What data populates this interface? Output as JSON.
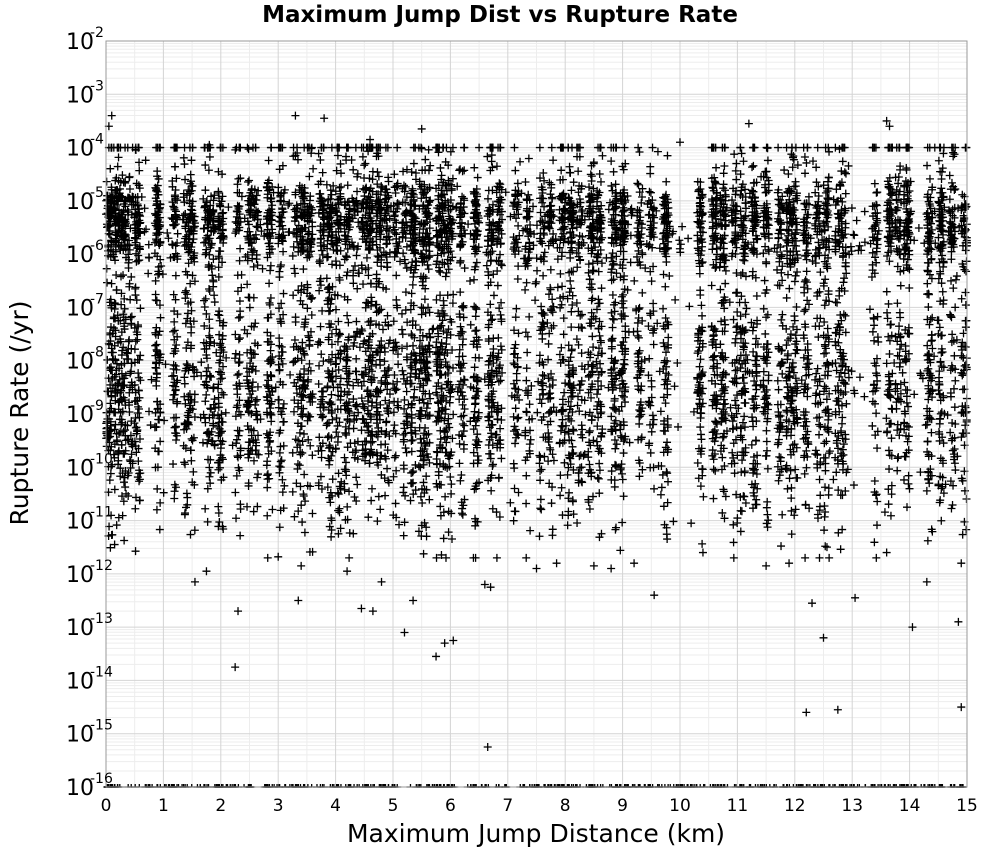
{
  "chart_data": {
    "type": "scatter",
    "title": "Maximum Jump Dist vs Rupture Rate",
    "xlabel": "Maximum Jump Distance (km)",
    "ylabel": "Rupture Rate (/yr)",
    "xlim": [
      0,
      15
    ],
    "ylim": [
      1e-16,
      0.01
    ],
    "y_scale": "log",
    "grid": true,
    "marker": "+",
    "marker_color": "#000000",
    "x_ticks": [
      "0",
      "1",
      "2",
      "3",
      "4",
      "5",
      "6",
      "7",
      "8",
      "9",
      "10",
      "11",
      "12",
      "13",
      "14",
      "15"
    ],
    "y_ticks": [
      {
        "base": "10",
        "exp": "-16"
      },
      {
        "base": "10",
        "exp": "-15"
      },
      {
        "base": "10",
        "exp": "-14"
      },
      {
        "base": "10",
        "exp": "-13"
      },
      {
        "base": "10",
        "exp": "-12"
      },
      {
        "base": "10",
        "exp": "-11"
      },
      {
        "base": "10",
        "exp": "-10"
      },
      {
        "base": "10",
        "exp": "-9"
      },
      {
        "base": "10",
        "exp": "-8"
      },
      {
        "base": "10",
        "exp": "-7"
      },
      {
        "base": "10",
        "exp": "-6"
      },
      {
        "base": "10",
        "exp": "-5"
      },
      {
        "base": "10",
        "exp": "-4"
      },
      {
        "base": "10",
        "exp": "-3"
      },
      {
        "base": "10",
        "exp": "-2"
      }
    ],
    "column_x": [
      0.05,
      0.12,
      0.2,
      0.3,
      0.42,
      0.55,
      0.9,
      1.2,
      1.4,
      1.5,
      1.75,
      1.85,
      2.0,
      2.3,
      2.5,
      2.6,
      2.85,
      3.05,
      3.3,
      3.42,
      3.55,
      3.75,
      3.9,
      4.05,
      4.2,
      4.35,
      4.5,
      4.6,
      4.75,
      4.9,
      5.05,
      5.2,
      5.35,
      5.5,
      5.6,
      5.8,
      5.9,
      6.0,
      6.2,
      6.45,
      6.7,
      6.85,
      7.15,
      7.35,
      7.6,
      7.75,
      7.95,
      8.1,
      8.25,
      8.45,
      8.6,
      8.85,
      9.0,
      9.3,
      9.5,
      9.75,
      10.35,
      10.6,
      10.75,
      10.95,
      11.1,
      11.3,
      11.5,
      11.75,
      11.9,
      12.0,
      12.2,
      12.4,
      12.55,
      12.75,
      12.85,
      13.4,
      13.65,
      13.8,
      13.95,
      14.35,
      14.55,
      14.75,
      14.95
    ],
    "points": [
      [
        0.1,
        -3.4
      ],
      [
        0.05,
        -3.6
      ],
      [
        3.3,
        -3.4
      ],
      [
        3.8,
        -3.45
      ],
      [
        5.5,
        -3.65
      ],
      [
        11.2,
        -3.55
      ],
      [
        13.6,
        -3.5
      ],
      [
        13.65,
        -3.6
      ],
      [
        4.6,
        -3.85
      ],
      [
        10.0,
        -3.9
      ],
      [
        1.8,
        -3.95
      ],
      [
        2.3,
        -12.7
      ],
      [
        2.25,
        -13.75
      ],
      [
        3.35,
        -12.5
      ],
      [
        4.45,
        -12.65
      ],
      [
        4.65,
        -12.7
      ],
      [
        5.2,
        -13.1
      ],
      [
        5.75,
        -13.55
      ],
      [
        5.9,
        -13.3
      ],
      [
        6.05,
        -13.25
      ],
      [
        6.65,
        -15.25
      ],
      [
        9.55,
        -12.4
      ],
      [
        12.2,
        -14.6
      ],
      [
        12.75,
        -14.55
      ],
      [
        12.3,
        -12.55
      ],
      [
        12.5,
        -13.2
      ],
      [
        13.05,
        -12.45
      ],
      [
        14.05,
        -13.0
      ],
      [
        14.85,
        -12.9
      ],
      [
        14.9,
        -14.5
      ],
      [
        1.55,
        -12.15
      ],
      [
        1.75,
        -11.95
      ],
      [
        3.4,
        -11.85
      ],
      [
        4.2,
        -11.95
      ],
      [
        4.8,
        -12.15
      ],
      [
        5.35,
        -12.5
      ],
      [
        6.6,
        -12.2
      ],
      [
        6.7,
        -12.25
      ],
      [
        7.5,
        -11.9
      ],
      [
        7.85,
        -11.8
      ],
      [
        8.5,
        -11.85
      ],
      [
        8.8,
        -11.9
      ],
      [
        9.2,
        -11.8
      ],
      [
        10.4,
        -11.6
      ],
      [
        11.5,
        -11.85
      ],
      [
        11.9,
        -11.8
      ],
      [
        13.6,
        -11.6
      ],
      [
        14.3,
        -12.15
      ],
      [
        14.9,
        -11.8
      ],
      [
        0.15,
        -11.45
      ]
    ]
  }
}
